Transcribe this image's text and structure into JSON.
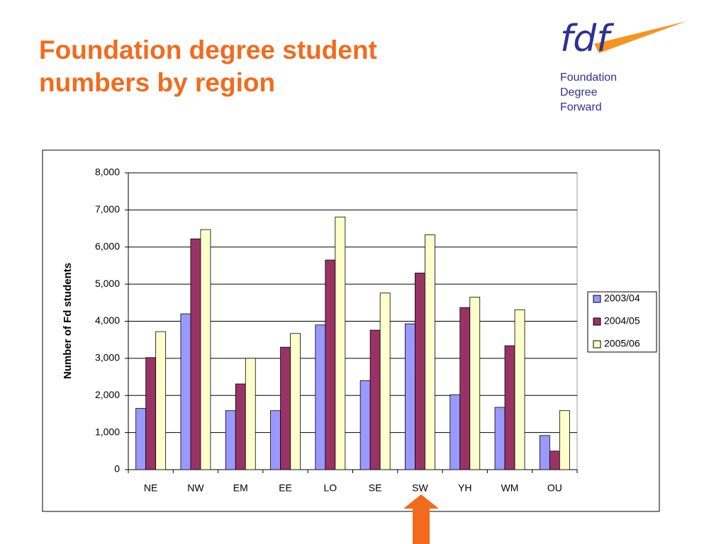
{
  "title": "Foundation degree student numbers by region",
  "logo": {
    "mark": "fdf",
    "lines": [
      "Foundation",
      "Degree",
      "Forward"
    ]
  },
  "chart_data": {
    "type": "bar",
    "y_label": "Number of Fd students",
    "categories": [
      "NE",
      "NW",
      "EM",
      "EE",
      "LO",
      "SE",
      "SW",
      "YH",
      "WM",
      "OU"
    ],
    "series": [
      {
        "name": "2003/04",
        "color": "#9999ff",
        "values": [
          1650,
          4200,
          1590,
          1590,
          3900,
          2400,
          3930,
          2020,
          1680,
          920
        ]
      },
      {
        "name": "2004/05",
        "color": "#993366",
        "values": [
          3020,
          6220,
          2310,
          3300,
          5650,
          3760,
          5300,
          4370,
          3340,
          500
        ]
      },
      {
        "name": "2005/06",
        "color": "#ffffcc",
        "values": [
          3720,
          6470,
          3000,
          3670,
          6810,
          4760,
          6330,
          4650,
          4310,
          1590
        ]
      }
    ],
    "ylim": [
      0,
      8000
    ],
    "yticks": [
      0,
      {
        "value": 1000,
        "label": "1,000"
      },
      {
        "value": 2000,
        "label": "2,000"
      },
      {
        "value": 3000,
        "label": "3,000"
      },
      {
        "value": 4000,
        "label": "4,000"
      },
      {
        "value": 5000,
        "label": "5,000"
      },
      {
        "value": 6000,
        "label": "6,000"
      },
      {
        "value": 7000,
        "label": "7,000"
      },
      {
        "value": 8000,
        "label": "8,000"
      }
    ],
    "grid": true,
    "legend": "right"
  }
}
